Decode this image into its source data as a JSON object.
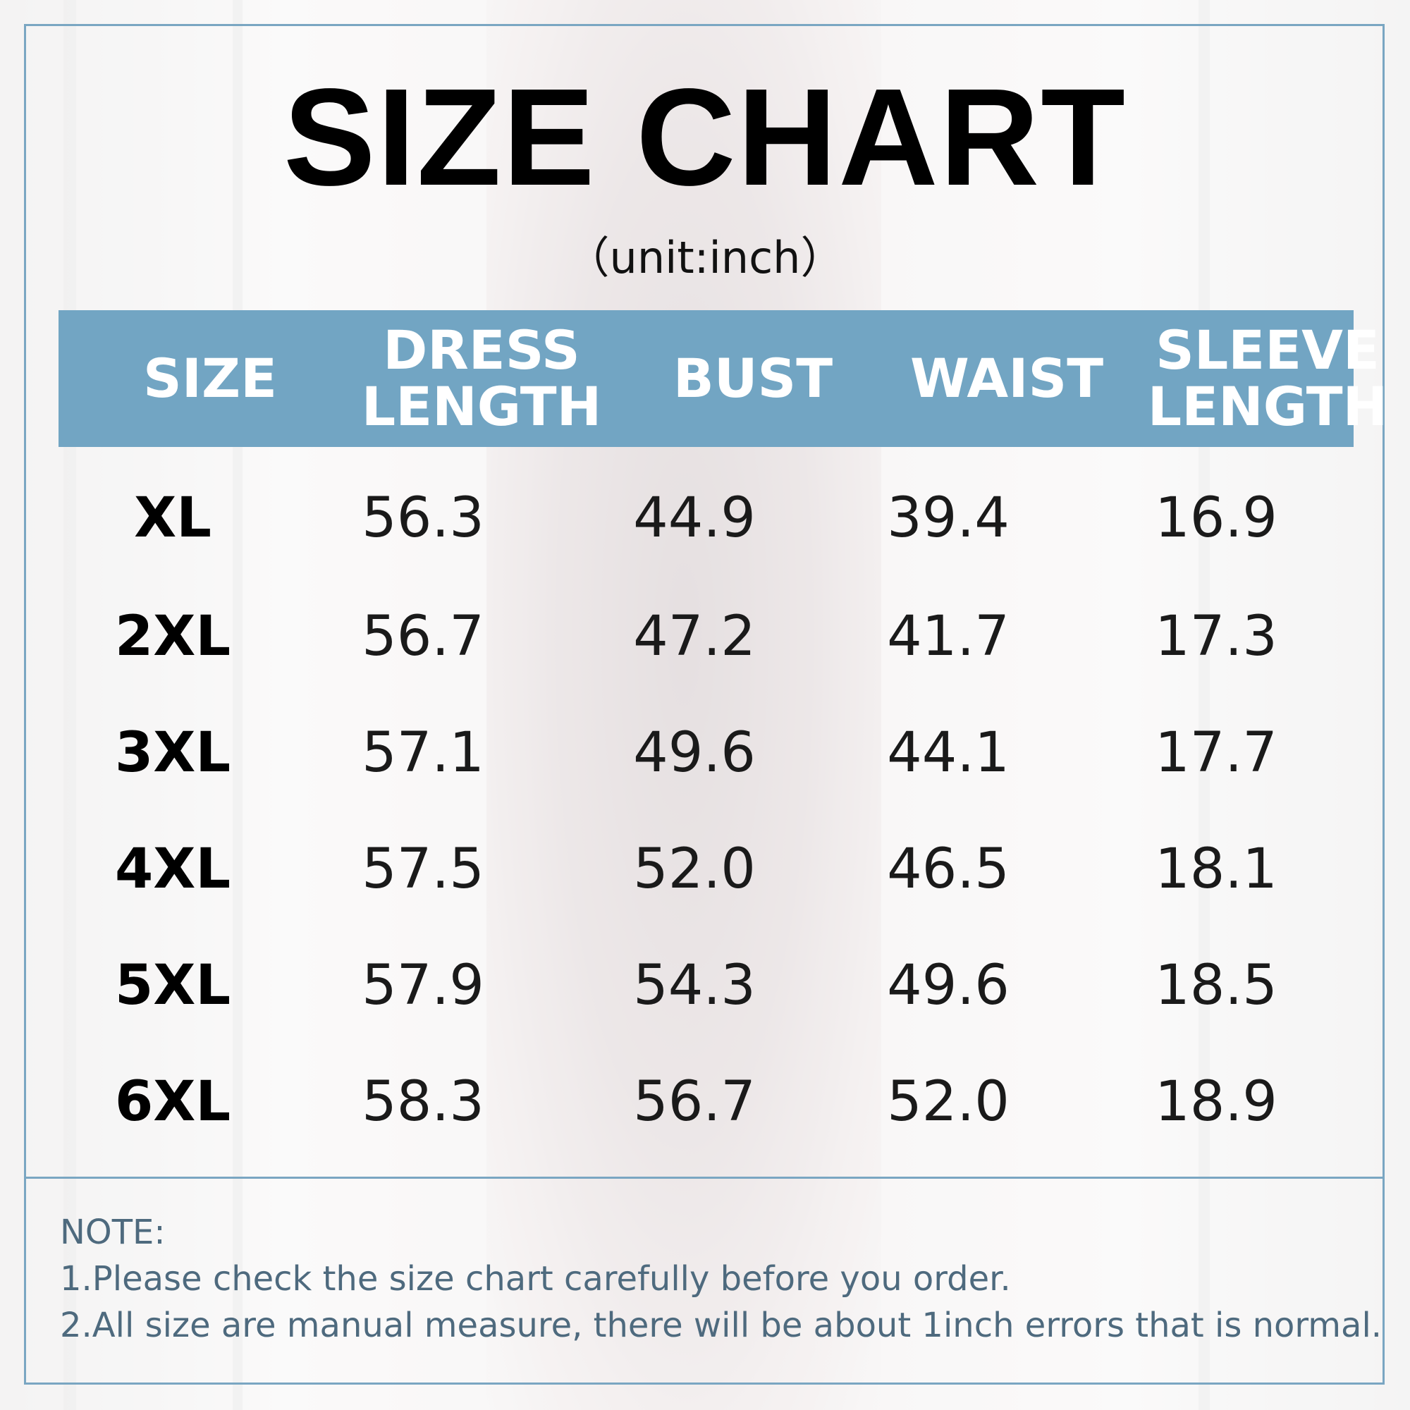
{
  "title": "SIZE CHART",
  "unit": "（unit:inch）",
  "columns": [
    {
      "line1": "SIZE",
      "line2": ""
    },
    {
      "line1": "DRESS",
      "line2": "LENGTH"
    },
    {
      "line1": "BUST",
      "line2": ""
    },
    {
      "line1": "WAIST",
      "line2": ""
    },
    {
      "line1": "SLEEVE",
      "line2": "LENGTH"
    }
  ],
  "rows": [
    {
      "size": "XL",
      "dress_length": "56.3",
      "bust": "44.9",
      "waist": "39.4",
      "sleeve_length": "16.9"
    },
    {
      "size": "2XL",
      "dress_length": "56.7",
      "bust": "47.2",
      "waist": "41.7",
      "sleeve_length": "17.3"
    },
    {
      "size": "3XL",
      "dress_length": "57.1",
      "bust": "49.6",
      "waist": "44.1",
      "sleeve_length": "17.7"
    },
    {
      "size": "4XL",
      "dress_length": "57.5",
      "bust": "52.0",
      "waist": "46.5",
      "sleeve_length": "18.1"
    },
    {
      "size": "5XL",
      "dress_length": "57.9",
      "bust": "54.3",
      "waist": "49.6",
      "sleeve_length": "18.5"
    },
    {
      "size": "6XL",
      "dress_length": "58.3",
      "bust": "56.7",
      "waist": "52.0",
      "sleeve_length": "18.9"
    }
  ],
  "note": {
    "heading": "NOTE:",
    "line1": "1.Please check the size chart carefully before you order.",
    "line2": "2.All size are manual measure, there will be about 1inch errors that is normal."
  },
  "colors": {
    "header_bg": "#72a5c3",
    "border": "#7aa6c2",
    "note_text": "#4e6a7e"
  }
}
